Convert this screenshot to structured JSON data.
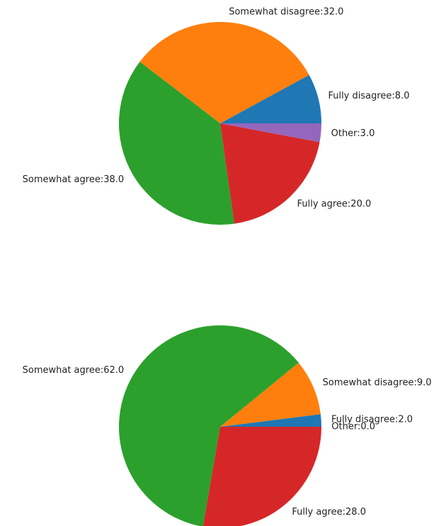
{
  "chart_data": [
    {
      "type": "pie",
      "values": [
        8.0,
        32.0,
        38.0,
        20.0,
        3.0
      ],
      "value_labels": [
        "Fully disagree:8.0",
        "Somewhat disagree:32.0",
        "Somewhat agree:38.0",
        "Fully agree:20.0",
        "Other:3.0"
      ],
      "colors": [
        "#1f77b4",
        "#ff7f0e",
        "#2ca02c",
        "#d62728",
        "#9467bd"
      ]
    },
    {
      "type": "pie",
      "values": [
        2.0,
        9.0,
        62.0,
        28.0,
        0.0
      ],
      "value_labels": [
        "Fully disagree:2.0",
        "Somewhat disagree:9.0",
        "Somewhat agree:62.0",
        "Fully agree:28.0",
        "Other:0.0"
      ],
      "colors": [
        "#1f77b4",
        "#ff7f0e",
        "#2ca02c",
        "#d62728",
        "#9467bd"
      ]
    }
  ]
}
